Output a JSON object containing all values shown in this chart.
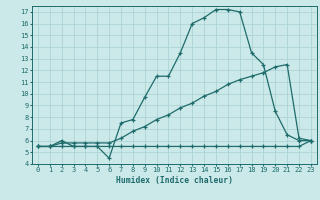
{
  "xlabel": "Humidex (Indice chaleur)",
  "bg_color": "#cce9ea",
  "grid_color": "#add4d5",
  "line_color": "#1e6b6b",
  "xlim": [
    -0.5,
    23.5
  ],
  "ylim": [
    4,
    17.5
  ],
  "xticks": [
    0,
    1,
    2,
    3,
    4,
    5,
    6,
    7,
    8,
    9,
    10,
    11,
    12,
    13,
    14,
    15,
    16,
    17,
    18,
    19,
    20,
    21,
    22,
    23
  ],
  "yticks": [
    4,
    5,
    6,
    7,
    8,
    9,
    10,
    11,
    12,
    13,
    14,
    15,
    16,
    17
  ],
  "curve1_x": [
    0,
    1,
    2,
    3,
    4,
    5,
    6,
    7,
    8,
    9,
    10,
    11,
    12,
    13,
    14,
    15,
    16,
    17,
    18,
    19,
    20,
    21,
    22,
    23
  ],
  "curve1_y": [
    5.5,
    5.5,
    6.0,
    5.5,
    5.5,
    5.5,
    4.5,
    7.5,
    7.8,
    9.7,
    11.5,
    11.5,
    13.5,
    16.0,
    16.5,
    17.2,
    17.2,
    17.0,
    13.5,
    12.5,
    8.5,
    6.5,
    6.0,
    6.0
  ],
  "curve2_x": [
    0,
    1,
    2,
    3,
    4,
    5,
    6,
    7,
    8,
    9,
    10,
    11,
    12,
    13,
    14,
    15,
    16,
    17,
    18,
    19,
    20,
    21,
    22,
    23
  ],
  "curve2_y": [
    5.5,
    5.5,
    5.8,
    5.8,
    5.8,
    5.8,
    5.8,
    6.2,
    6.8,
    7.2,
    7.8,
    8.2,
    8.8,
    9.2,
    9.8,
    10.2,
    10.8,
    11.2,
    11.5,
    11.8,
    12.3,
    12.5,
    6.2,
    6.0
  ],
  "curve3_x": [
    0,
    1,
    2,
    3,
    4,
    5,
    6,
    7,
    8,
    9,
    10,
    11,
    12,
    13,
    14,
    15,
    16,
    17,
    18,
    19,
    20,
    21,
    22,
    23
  ],
  "curve3_y": [
    5.5,
    5.5,
    5.5,
    5.5,
    5.5,
    5.5,
    5.5,
    5.5,
    5.5,
    5.5,
    5.5,
    5.5,
    5.5,
    5.5,
    5.5,
    5.5,
    5.5,
    5.5,
    5.5,
    5.5,
    5.5,
    5.5,
    5.5,
    6.0
  ]
}
